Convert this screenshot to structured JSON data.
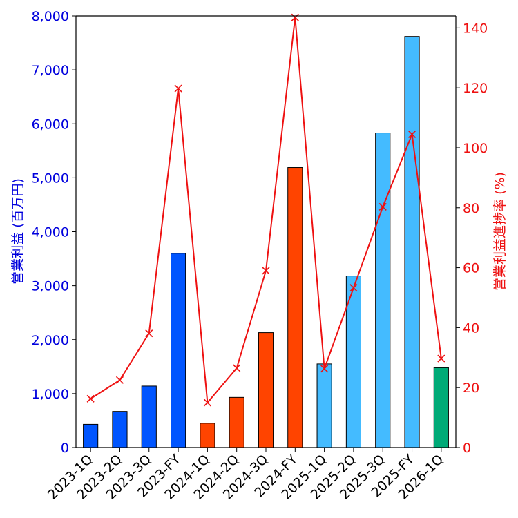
{
  "chart_data": {
    "type": "bar+line",
    "categories": [
      "2023-1Q",
      "2023-2Q",
      "2023-3Q",
      "2023-FY",
      "2024-1Q",
      "2024-2Q",
      "2024-3Q",
      "2024-FY",
      "2025-1Q",
      "2025-2Q",
      "2025-3Q",
      "2025-FY",
      "2026-1Q"
    ],
    "bar_series": {
      "name": "営業利益",
      "values": [
        430,
        670,
        1140,
        3600,
        450,
        930,
        2130,
        5190,
        1550,
        3180,
        5830,
        7620,
        1480
      ],
      "colors": [
        "#0055ff",
        "#0055ff",
        "#0055ff",
        "#0055ff",
        "#ff4400",
        "#ff4400",
        "#ff4400",
        "#ff4400",
        "#44bbff",
        "#44bbff",
        "#44bbff",
        "#44bbff",
        "#00aa77"
      ]
    },
    "line_series": {
      "name": "営業利益進捗率",
      "values": [
        16.3,
        22.5,
        38.1,
        119.8,
        15.0,
        26.5,
        59.0,
        143.5,
        26.3,
        53.3,
        80.3,
        104.5,
        29.7
      ],
      "color": "#ee1111",
      "marker": "x"
    },
    "ylabel_left": "営業利益 (百万円)",
    "ylabel_right": "営業利益進捗率 (%)",
    "ylim_left": [
      0,
      8000
    ],
    "ylim_right": [
      0,
      144
    ],
    "yticks_left": [
      "0",
      "1,000",
      "2,000",
      "3,000",
      "4,000",
      "5,000",
      "6,000",
      "7,000",
      "8,000"
    ],
    "yticks_left_values": [
      0,
      1000,
      2000,
      3000,
      4000,
      5000,
      6000,
      7000,
      8000
    ],
    "yticks_right": [
      "0",
      "20",
      "40",
      "60",
      "80",
      "100",
      "120",
      "140"
    ],
    "yticks_right_values": [
      0,
      20,
      40,
      60,
      80,
      100,
      120,
      140
    ],
    "left_axis_color": "#0000dd",
    "right_axis_color": "#ee1111"
  }
}
